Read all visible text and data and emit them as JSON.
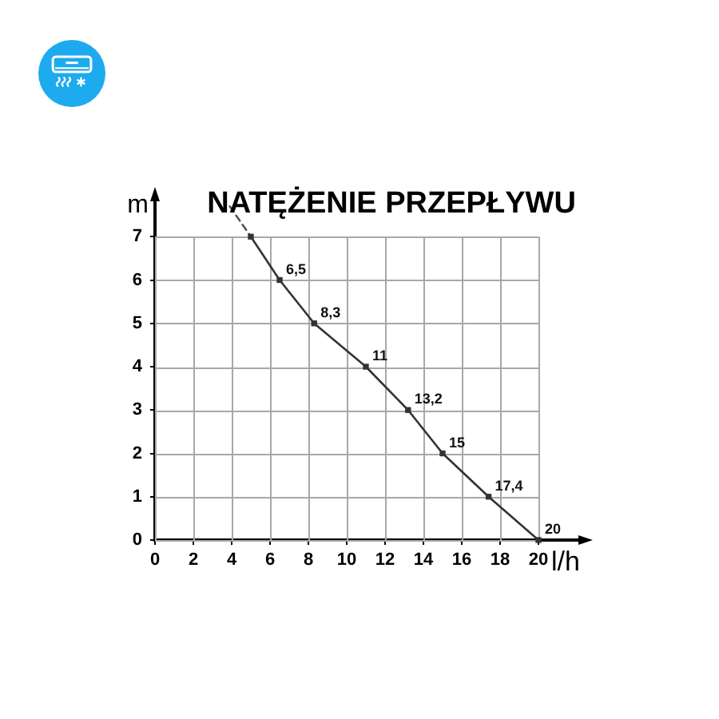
{
  "chart_data": {
    "type": "line",
    "title": "NATĘŻENIE PRZEPŁYWU",
    "xlabel": "l/h",
    "ylabel": "m",
    "xlim": [
      0,
      22.5
    ],
    "ylim": [
      0,
      8
    ],
    "xticks": [
      0,
      2,
      4,
      6,
      8,
      10,
      12,
      14,
      16,
      18,
      20
    ],
    "yticks": [
      0,
      1,
      2,
      3,
      4,
      5,
      6,
      7
    ],
    "grid": true,
    "legend": false,
    "series": [
      {
        "color": "#333333",
        "x": [
          5,
          6.5,
          8.3,
          11,
          13.2,
          15,
          17.4,
          20
        ],
        "values": [
          7,
          6,
          5,
          4,
          3,
          2,
          1,
          0
        ],
        "marker": "square",
        "line_style": "solid"
      },
      {
        "color": "#555555",
        "x": [
          3.9,
          5
        ],
        "values": [
          7.7,
          7
        ],
        "marker": "none",
        "line_style": "dashed"
      }
    ],
    "annotations": [
      {
        "text": "6,5",
        "x": 6.5,
        "y": 6
      },
      {
        "text": "8,3",
        "x": 8.3,
        "y": 5
      },
      {
        "text": "11",
        "x": 11,
        "y": 4
      },
      {
        "text": "13,2",
        "x": 13.2,
        "y": 3
      },
      {
        "text": "15",
        "x": 15,
        "y": 2
      },
      {
        "text": "17,4",
        "x": 17.4,
        "y": 1
      },
      {
        "text": "20",
        "x": 20,
        "y": 0
      }
    ]
  }
}
